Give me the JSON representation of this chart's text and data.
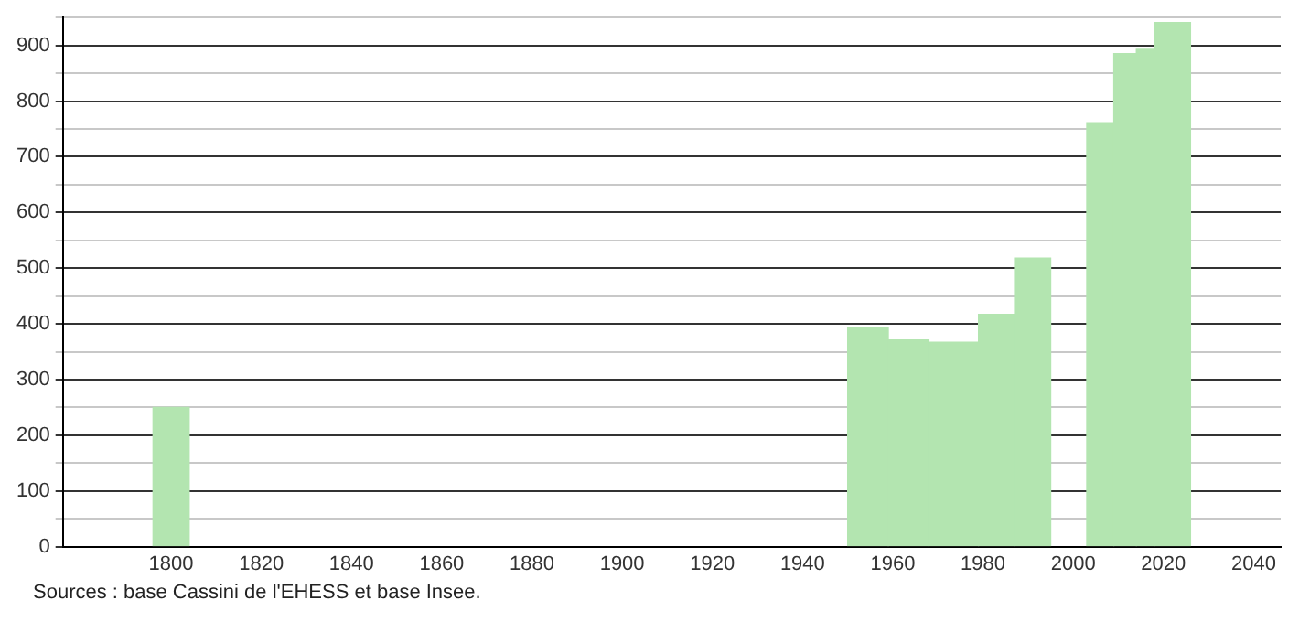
{
  "chart_data": {
    "type": "histogram",
    "bins": [
      1796,
      1804,
      1950,
      1959,
      1968,
      1979,
      1987,
      1995,
      2003,
      2009,
      2014,
      2018,
      2026
    ],
    "values": [
      250,
      null,
      394,
      371,
      367,
      417,
      518,
      null,
      761,
      885,
      893,
      941
    ],
    "color": "#b3e5b0",
    "xlim": [
      1776,
      2046
    ],
    "xticks": [
      1800,
      1820,
      1840,
      1860,
      1880,
      1900,
      1920,
      1940,
      1960,
      1980,
      2000,
      2020,
      2040
    ],
    "ylim": [
      0,
      950
    ],
    "yticks": [
      0,
      {
        "value": 50,
        "label": null
      },
      100,
      {
        "value": 150,
        "label": null
      },
      200,
      {
        "value": 250,
        "label": null
      },
      300,
      {
        "value": 350,
        "label": null
      },
      400,
      {
        "value": 450,
        "label": null
      },
      500,
      {
        "value": 550,
        "label": null
      },
      600,
      {
        "value": 650,
        "label": null
      },
      700,
      {
        "value": 750,
        "label": null
      },
      800,
      {
        "value": 850,
        "label": null
      },
      900,
      {
        "value": 950,
        "label": null
      }
    ],
    "grid": "y",
    "legend": false,
    "annotations": [
      "Sources : base Cassini de l'EHESS et base Insee."
    ]
  }
}
